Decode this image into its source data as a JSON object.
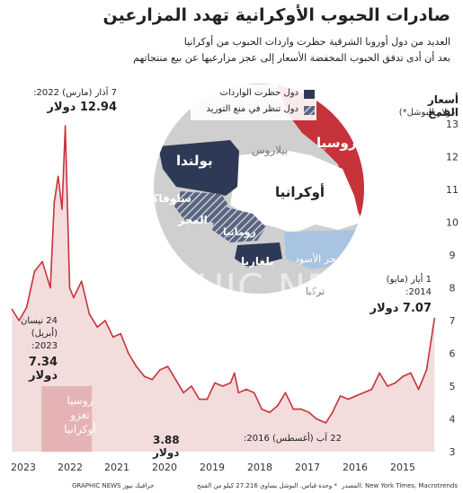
{
  "title": "صادرات الحبوب الأوكرانية تهدد المزارعين",
  "subtitle_line1": "العديد من دول أوروبا الشرقية حظرت واردات الحبوب من أوكرانيا",
  "subtitle_line2": "بعد أن أدى تدفق الحبوب المخفضة الأسعار إلى عجز مزارعيها عن بيع منتجاتهم",
  "y_title": "أسعار القمح",
  "y_unit": "(دولار للبوشل*)",
  "legend": {
    "banned": "دول حظرت الواردات",
    "considering": "دول تنظر في منع التوريد",
    "colors": {
      "banned": "#2e3a55",
      "considering": "#5a6680"
    }
  },
  "map_labels": {
    "russia": "روسيا",
    "belarus": "بيلاروس",
    "poland": "بولندا",
    "ukraine": "أوكرانيا",
    "slovakia": "سلوفاكيا",
    "hungary": "المجر",
    "romania": "رومانيا",
    "bulgaria": "بلغاريا",
    "black_sea": "البحر الأسود",
    "turkey": "تركيا"
  },
  "annotations": {
    "peak_date": "7 آذار (مارس) 2022:",
    "peak_value": "12.94 دولار",
    "apr_date_1": "24 نيسان",
    "apr_date_2": "(أبريل)",
    "apr_date_3": "2023:",
    "apr_value": "7.34 دولار",
    "may_date_1": "1 أيار (مايو)",
    "may_date_2": "2014:",
    "may_value": "7.07 دولار",
    "low_date": "22 آب (أغسطس) 2016:",
    "low_value": "3.88 دولار",
    "invasion_1": "روسيا",
    "invasion_2": "تغزو",
    "invasion_3": "أوكرانيا"
  },
  "watermark": "GRAPHIC NEWS",
  "source": "المصدر: New York Times, Macrotrends",
  "note": "* وحدة قياس. البوشل يساوي 27.216 كيلو من القمح",
  "brand": "GRAPHIC NEWS جرافيك نيوز",
  "colors": {
    "line": "#c8323a",
    "area": "#f2dcdc",
    "russia": "#c8323a",
    "sea": "#a8c4e0",
    "land": "#cfcfcf"
  },
  "chart_data": {
    "type": "area",
    "title": "",
    "xlabel": "",
    "ylabel": "أسعار القمح",
    "x_ticks": [
      "2023",
      "2022",
      "2021",
      "2020",
      "2019",
      "2018",
      "2017",
      "2016",
      "2015"
    ],
    "x_direction": "right-to-left",
    "y_ticks": [
      3,
      4,
      5,
      6,
      7,
      8,
      9,
      10,
      11,
      12,
      13
    ],
    "ylim": [
      3,
      13
    ],
    "grid": false,
    "series": [
      {
        "x": [
          "2023-04-24",
          "2023-03-01",
          "2023-01-01",
          "2022-11-01",
          "2022-09-01",
          "2022-07-01",
          "2022-06-01",
          "2022-05-01",
          "2022-04-01",
          "2022-03-07",
          "2022-02-01",
          "2022-01-01",
          "2021-11-01",
          "2021-09-01",
          "2021-07-01",
          "2021-05-01",
          "2021-03-01",
          "2021-01-01",
          "2020-11-01",
          "2020-09-01",
          "2020-07-01",
          "2020-05-01",
          "2020-03-01",
          "2020-01-01",
          "2019-11-01",
          "2019-09-01",
          "2019-07-01",
          "2019-05-01",
          "2019-03-01",
          "2019-01-01",
          "2018-11-01",
          "2018-09-01",
          "2018-08-01",
          "2018-07-01",
          "2018-05-01",
          "2018-03-01",
          "2018-01-01",
          "2017-11-01",
          "2017-09-01",
          "2017-07-01",
          "2017-05-01",
          "2017-03-01",
          "2017-01-01",
          "2016-11-01",
          "2016-08-22",
          "2016-07-01",
          "2016-05-01",
          "2016-03-01",
          "2016-01-01",
          "2015-11-01",
          "2015-09-01",
          "2015-07-01",
          "2015-05-01",
          "2015-03-01",
          "2015-01-01",
          "2014-11-01",
          "2014-09-01",
          "2014-07-01",
          "2014-05-01"
        ],
        "values": [
          7.34,
          7.0,
          7.4,
          8.5,
          8.8,
          8.0,
          10.6,
          11.4,
          10.4,
          12.94,
          8.0,
          7.7,
          8.2,
          7.2,
          6.8,
          7.0,
          6.5,
          6.6,
          6.0,
          5.6,
          5.3,
          5.2,
          5.5,
          5.6,
          5.2,
          4.8,
          5.0,
          4.6,
          4.6,
          5.1,
          5.0,
          5.1,
          5.4,
          4.8,
          4.9,
          4.8,
          4.3,
          4.2,
          4.4,
          4.8,
          4.3,
          4.3,
          4.2,
          4.0,
          3.88,
          4.2,
          4.7,
          4.6,
          4.7,
          4.8,
          4.9,
          5.4,
          5.0,
          5.1,
          5.3,
          5.4,
          4.9,
          5.5,
          7.07
        ]
      }
    ]
  }
}
